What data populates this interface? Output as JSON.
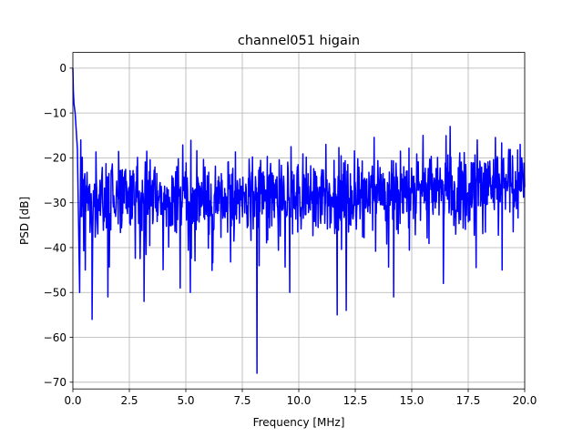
{
  "chart_data": {
    "type": "line",
    "title": "channel051 higain",
    "xlabel": "Frequency [MHz]",
    "ylabel": "PSD [dB]",
    "xlim": [
      0,
      20
    ],
    "ylim": [
      -71.5,
      3.5
    ],
    "x_ticks": [
      0,
      2.5,
      5,
      7.5,
      10,
      12.5,
      15,
      17.5,
      20
    ],
    "x_tick_labels": [
      "0.0",
      "2.5",
      "5.0",
      "7.5",
      "10.0",
      "12.5",
      "15.0",
      "17.5",
      "20.0"
    ],
    "y_ticks": [
      0,
      -10,
      -20,
      -30,
      -40,
      -50,
      -60,
      -70
    ],
    "y_tick_labels": [
      "0",
      "−10",
      "−20",
      "−30",
      "−40",
      "−50",
      "−60",
      "−70"
    ],
    "grid": true,
    "legend": "none",
    "series": [
      {
        "color": "#0000ff",
        "x_range": [
          0,
          20
        ],
        "n_points": 1200,
        "head_points": [
          {
            "x": 0.0,
            "y": 0.0
          },
          {
            "x": 0.02,
            "y": -5
          },
          {
            "x": 0.05,
            "y": -8
          },
          {
            "x": 0.1,
            "y": -10
          },
          {
            "x": 0.15,
            "y": -14
          },
          {
            "x": 0.2,
            "y": -18
          },
          {
            "x": 0.3,
            "y": -21
          }
        ],
        "baseline_db": -29,
        "spread_db": 7,
        "notable_dips": [
          {
            "x": 0.3,
            "y": -50
          },
          {
            "x": 0.55,
            "y": -45
          },
          {
            "x": 0.85,
            "y": -56
          },
          {
            "x": 1.55,
            "y": -51
          },
          {
            "x": 3.15,
            "y": -52
          },
          {
            "x": 4.75,
            "y": -49
          },
          {
            "x": 5.2,
            "y": -50
          },
          {
            "x": 8.15,
            "y": -68
          },
          {
            "x": 9.6,
            "y": -50
          },
          {
            "x": 11.7,
            "y": -55
          },
          {
            "x": 12.1,
            "y": -54
          },
          {
            "x": 14.2,
            "y": -51
          },
          {
            "x": 16.4,
            "y": -48
          },
          {
            "x": 19.0,
            "y": -45
          }
        ],
        "notable_peaks": [
          {
            "x": 0.1,
            "y": -10
          },
          {
            "x": 0.35,
            "y": -16
          },
          {
            "x": 11.2,
            "y": -17
          },
          {
            "x": 15.5,
            "y": -15
          },
          {
            "x": 16.7,
            "y": -13
          },
          {
            "x": 17.9,
            "y": -16
          },
          {
            "x": 19.8,
            "y": -17
          }
        ]
      }
    ]
  }
}
